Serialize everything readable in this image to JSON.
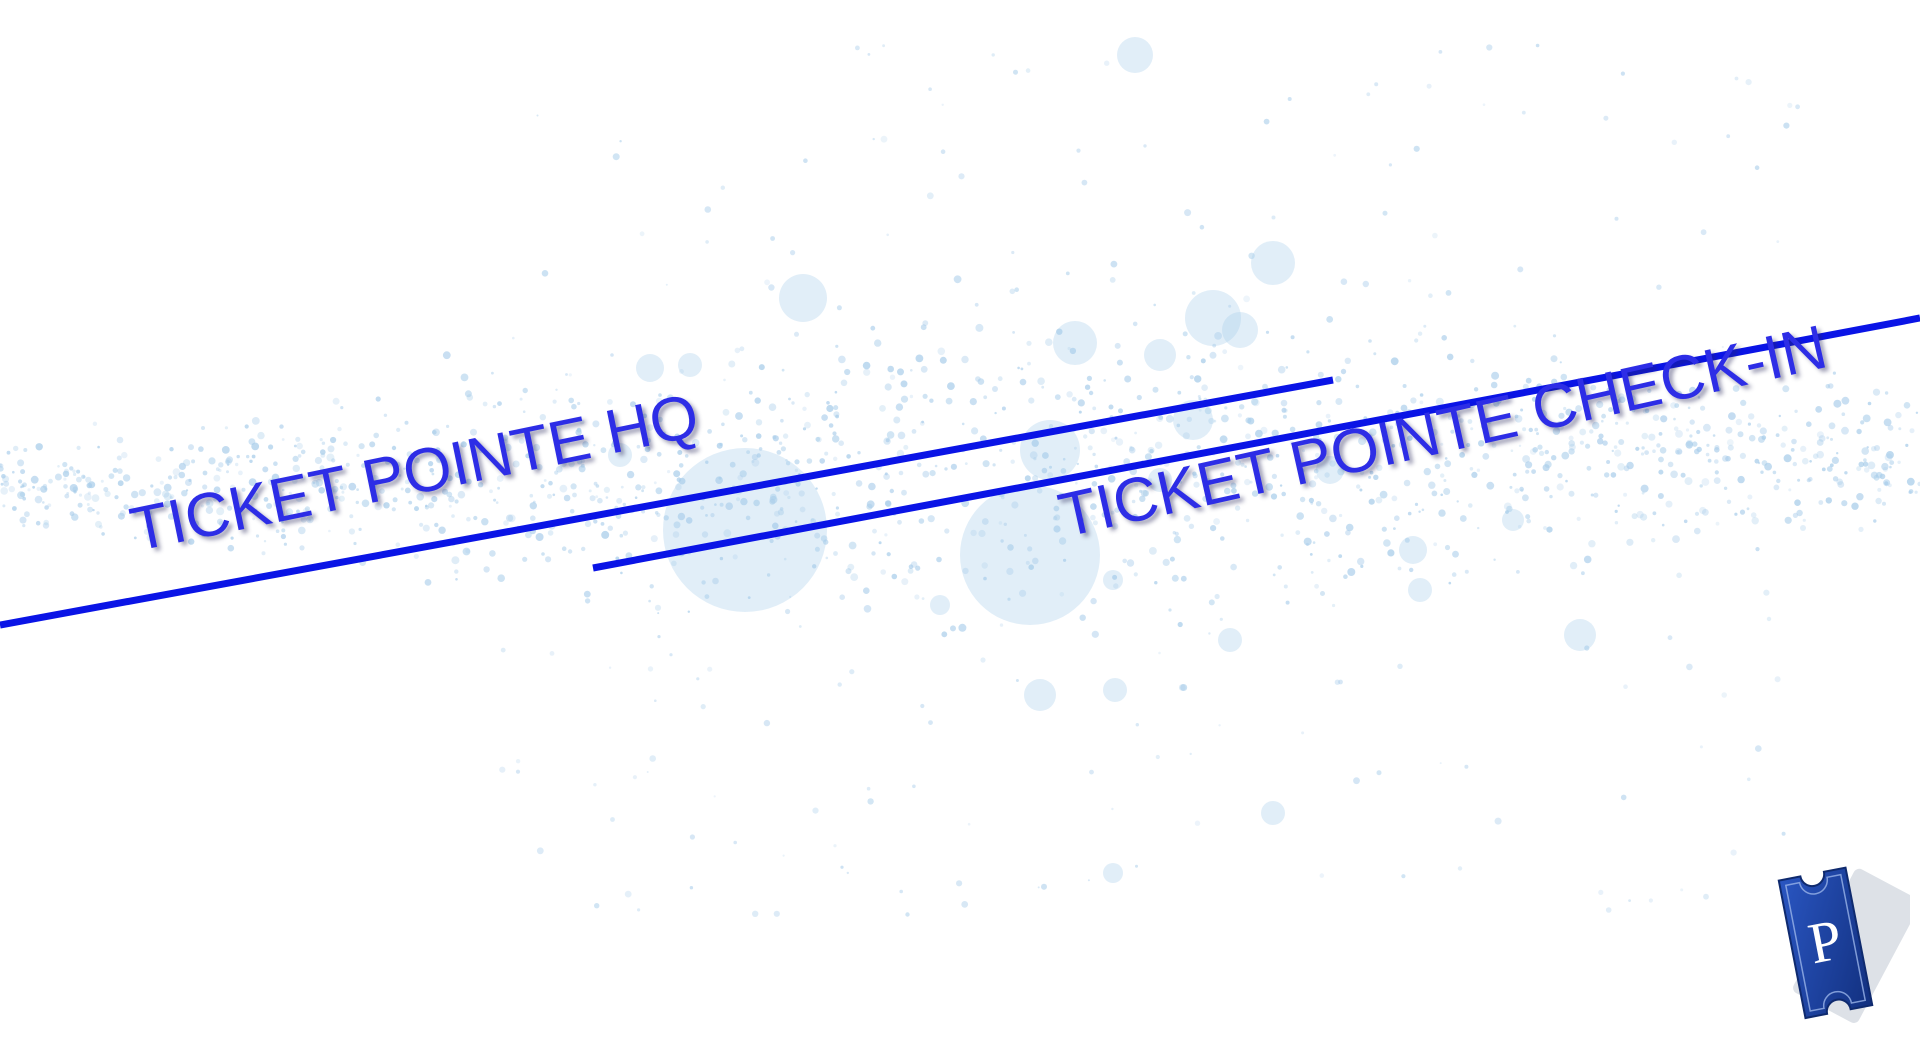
{
  "links": {
    "hq_label": "TICKET POINTE HQ",
    "checkin_label": "TICKET POINTE CHECK-IN"
  },
  "logo": {
    "letter": "P",
    "icon": "ticket-icon"
  },
  "colors": {
    "accent": "#0a14e6",
    "label_text": "#2d2de6",
    "particles": "#a9cdea",
    "logo_ticket": "#1a3f9e",
    "logo_shadow": "#d9dde3",
    "background": "#ffffff"
  }
}
